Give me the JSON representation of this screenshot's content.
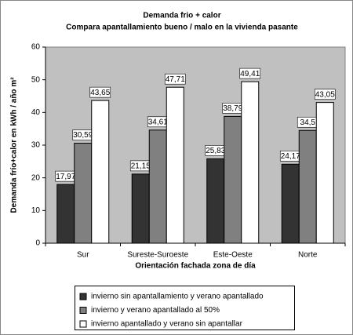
{
  "chart_data": {
    "type": "bar",
    "title": "Demanda frio + calor",
    "subtitle": "Compara apantallamiento bueno / malo en la vivienda pasante",
    "y_label": "Demanda frío+calor en kWh / año m²",
    "x_label": "Orientación fachada zona de día",
    "categories": [
      "Sur",
      "Sureste-Suroeste",
      "Este-Oeste",
      "Norte"
    ],
    "series": [
      {
        "name": "invierno sin apantallamiento y verano apantallado",
        "color": "#333333",
        "values": [
          17.97,
          21.15,
          25.83,
          24.17
        ],
        "value_labels": [
          "17,97",
          "21,15",
          "25,83",
          "24,17"
        ]
      },
      {
        "name": "invierno y verano apantallado al 50%",
        "color": "#808080",
        "values": [
          30.59,
          34.61,
          38.79,
          34.5
        ],
        "value_labels": [
          "30,59",
          "34,61",
          "38,79",
          "34,5"
        ]
      },
      {
        "name": "invierno apantallado y verano sin apantallar",
        "color": "#ffffff",
        "values": [
          43.65,
          47.71,
          49.41,
          43.05
        ],
        "value_labels": [
          "43,65",
          "47,71",
          "49,41",
          "43,05"
        ]
      }
    ],
    "ylim": [
      0,
      60
    ],
    "yticks": [
      0,
      10,
      20,
      30,
      40,
      50,
      60
    ],
    "plot_background": "#c0c0c0"
  }
}
